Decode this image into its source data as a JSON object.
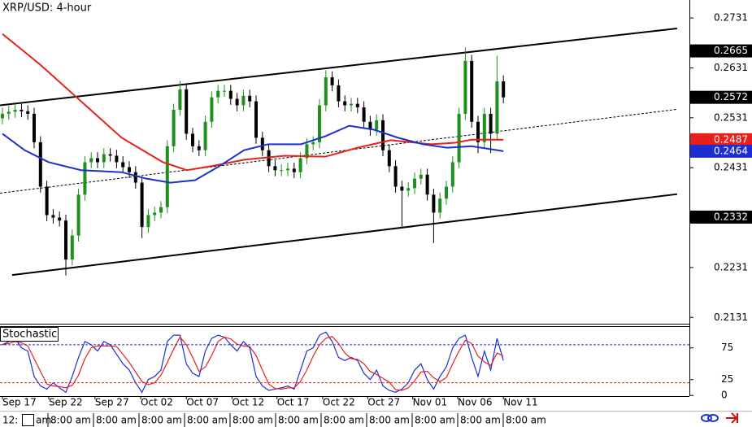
{
  "chart_data": {
    "type": "candlestick",
    "title": "XRP/USD: 4-hour",
    "up_color": "#1f8f1f",
    "down_color": "#000000",
    "ylim": [
      0.212,
      0.2767
    ],
    "yticks": [
      0.2731,
      0.2631,
      0.2531,
      0.2431,
      0.2231,
      0.2131
    ],
    "xlim": [
      -0.4,
      107
    ],
    "xticks": [
      {
        "value": 0,
        "label": "Sep 17"
      },
      {
        "value": 7.3,
        "label": "Sep 22"
      },
      {
        "value": 14.6,
        "label": "Sep 27"
      },
      {
        "value": 21.8,
        "label": "Oct 02"
      },
      {
        "value": 29,
        "label": "Oct 07"
      },
      {
        "value": 36.2,
        "label": "Oct 12"
      },
      {
        "value": 43.3,
        "label": "Oct 17"
      },
      {
        "value": 50.5,
        "label": "Oct 22"
      },
      {
        "value": 57.6,
        "label": "Oct 27"
      },
      {
        "value": 64.7,
        "label": "Nov 01"
      },
      {
        "value": 71.8,
        "label": "Nov 06"
      },
      {
        "value": 79,
        "label": "Nov 11"
      }
    ],
    "open": [
      0.253,
      0.2539,
      0.2543,
      0.2547,
      0.2544,
      0.2539,
      0.2482,
      0.2393,
      0.2336,
      0.2331,
      0.2325,
      0.2247,
      0.2295,
      0.2377,
      0.2442,
      0.245,
      0.2442,
      0.2458,
      0.2455,
      0.2442,
      0.2432,
      0.2422,
      0.2401,
      0.2312,
      0.2336,
      0.2341,
      0.2352,
      0.2474,
      0.2547,
      0.2588,
      0.2499,
      0.2474,
      0.2466,
      0.2523,
      0.2572,
      0.2585,
      0.2585,
      0.2569,
      0.2556,
      0.2575,
      0.2564,
      0.2491,
      0.2466,
      0.2434,
      0.2426,
      0.2426,
      0.2429,
      0.2422,
      0.245,
      0.2478,
      0.2482,
      0.2556,
      0.2612,
      0.2596,
      0.2564,
      0.2556,
      0.2559,
      0.2552,
      0.2523,
      0.2507,
      0.2526,
      0.2466,
      0.2434,
      0.2393,
      0.2385,
      0.239,
      0.2409,
      0.2417,
      0.2377,
      0.2341,
      0.2369,
      0.2393,
      0.2442,
      0.2539,
      0.2645,
      0.2523,
      0.2482,
      0.2539,
      0.2499,
      0.2604
    ],
    "high": [
      0.2551,
      0.2555,
      0.2559,
      0.2559,
      0.2556,
      0.2551,
      0.2494,
      0.2405,
      0.2348,
      0.2343,
      0.2337,
      0.2307,
      0.2389,
      0.2454,
      0.2462,
      0.2462,
      0.247,
      0.247,
      0.2467,
      0.2454,
      0.2444,
      0.2434,
      0.2413,
      0.2348,
      0.2353,
      0.2364,
      0.2486,
      0.2559,
      0.2605,
      0.26,
      0.2511,
      0.2486,
      0.2535,
      0.2584,
      0.2597,
      0.2597,
      0.2597,
      0.2581,
      0.2587,
      0.2587,
      0.2576,
      0.2503,
      0.2478,
      0.2446,
      0.2438,
      0.2441,
      0.2441,
      0.2462,
      0.249,
      0.2494,
      0.2568,
      0.2626,
      0.2624,
      0.2608,
      0.2576,
      0.2571,
      0.2571,
      0.2564,
      0.2535,
      0.2538,
      0.2538,
      0.2478,
      0.2446,
      0.2405,
      0.2402,
      0.2421,
      0.2429,
      0.2429,
      0.2389,
      0.2381,
      0.2405,
      0.2454,
      0.2551,
      0.2672,
      0.2657,
      0.2535,
      0.2551,
      0.2551,
      0.2655,
      0.2616
    ],
    "low": [
      0.2518,
      0.2527,
      0.2531,
      0.2532,
      0.2527,
      0.247,
      0.2381,
      0.2324,
      0.2319,
      0.2313,
      0.2215,
      0.2235,
      0.2283,
      0.2365,
      0.243,
      0.243,
      0.243,
      0.2443,
      0.243,
      0.242,
      0.241,
      0.2389,
      0.229,
      0.23,
      0.2324,
      0.2329,
      0.234,
      0.2462,
      0.2535,
      0.2487,
      0.2462,
      0.2454,
      0.2454,
      0.2511,
      0.256,
      0.2573,
      0.2557,
      0.2544,
      0.2544,
      0.2552,
      0.2479,
      0.2454,
      0.2422,
      0.2414,
      0.2414,
      0.2414,
      0.241,
      0.241,
      0.2438,
      0.2466,
      0.247,
      0.2544,
      0.2584,
      0.2552,
      0.2544,
      0.2544,
      0.254,
      0.2511,
      0.2495,
      0.2495,
      0.2454,
      0.2422,
      0.2381,
      0.231,
      0.2373,
      0.2378,
      0.2397,
      0.2365,
      0.228,
      0.2329,
      0.2357,
      0.2381,
      0.243,
      0.2527,
      0.2511,
      0.246,
      0.247,
      0.246,
      0.2487,
      0.256
    ],
    "close": [
      0.2539,
      0.2543,
      0.2547,
      0.2544,
      0.2539,
      0.2482,
      0.2393,
      0.2336,
      0.2331,
      0.2325,
      0.2247,
      0.2295,
      0.2377,
      0.2442,
      0.245,
      0.2442,
      0.2458,
      0.2455,
      0.2442,
      0.2432,
      0.2422,
      0.2401,
      0.2312,
      0.2336,
      0.2341,
      0.2352,
      0.2474,
      0.2547,
      0.2588,
      0.2499,
      0.2474,
      0.2466,
      0.2523,
      0.2572,
      0.2585,
      0.2585,
      0.2569,
      0.2556,
      0.2575,
      0.2564,
      0.2491,
      0.2466,
      0.2434,
      0.2426,
      0.2426,
      0.2429,
      0.2422,
      0.245,
      0.2478,
      0.2482,
      0.2556,
      0.2612,
      0.2596,
      0.2564,
      0.2556,
      0.2559,
      0.2552,
      0.2523,
      0.2507,
      0.2526,
      0.2466,
      0.2434,
      0.2393,
      0.2385,
      0.239,
      0.2409,
      0.2417,
      0.2377,
      0.2341,
      0.2369,
      0.2393,
      0.2442,
      0.2539,
      0.2645,
      0.2523,
      0.2482,
      0.2539,
      0.2499,
      0.2604,
      0.2572
    ],
    "lines": [
      {
        "color": "#e8201c",
        "x": [
          0,
          6,
          12.4,
          18.8,
          25.3,
          29.1,
          32.9,
          38.1,
          44.5,
          50.9,
          56,
          61.2,
          67.6,
          71.4,
          74,
          79
        ],
        "values": [
          0.2699,
          0.2637,
          0.2564,
          0.2491,
          0.2442,
          0.2426,
          0.2434,
          0.2447,
          0.2455,
          0.2453,
          0.2471,
          0.2486,
          0.2478,
          0.2481,
          0.2487,
          0.2487
        ]
      },
      {
        "color": "#1c2fd0",
        "x": [
          0,
          3.5,
          7.3,
          12.4,
          18.8,
          22.7,
          26.5,
          30.4,
          34.2,
          38.1,
          41.9,
          47.1,
          50.9,
          54.7,
          58.6,
          62.4,
          66.3,
          70.1,
          74,
          79
        ],
        "values": [
          0.2499,
          0.2466,
          0.2442,
          0.2426,
          0.2422,
          0.2409,
          0.2401,
          0.2406,
          0.2434,
          0.2466,
          0.2478,
          0.2478,
          0.2494,
          0.2515,
          0.2507,
          0.2491,
          0.2478,
          0.2471,
          0.2474,
          0.2464
        ]
      }
    ],
    "trendlines": [
      {
        "color": "#000000",
        "dashed": false,
        "x": [
          -0.38,
          106.4
        ],
        "values": [
          0.2556,
          0.271
        ]
      },
      {
        "color": "#000000",
        "dashed": false,
        "x": [
          1.54,
          106.4
        ],
        "values": [
          0.2216,
          0.2378
        ]
      },
      {
        "color": "#000000",
        "dashed": true,
        "x": [
          -0.38,
          106.4
        ],
        "values": [
          0.238,
          0.2548
        ]
      }
    ],
    "price_labels": [
      {
        "value": 0.2665,
        "color": "#000000"
      },
      {
        "value": 0.2572,
        "color": "#000000"
      },
      {
        "value": 0.2487,
        "color": "#e8201c"
      },
      {
        "value": 0.2464,
        "color": "#1c2fd0"
      },
      {
        "value": 0.2332,
        "color": "#000000"
      }
    ],
    "indicator": {
      "title": "Stochastic",
      "ylim": [
        -1,
        108
      ],
      "yticks": [
        75,
        25,
        0
      ],
      "levels": [
        {
          "value": 80,
          "color": "#1c2fd0"
        },
        {
          "value": 20,
          "color": "#e8201c"
        }
      ],
      "series": [
        {
          "color": "#1c2fd0",
          "values": [
            80,
            85,
            90,
            75,
            70,
            30,
            15,
            10,
            20,
            12,
            5,
            30,
            60,
            85,
            80,
            70,
            85,
            80,
            65,
            50,
            40,
            20,
            5,
            25,
            30,
            40,
            85,
            95,
            95,
            50,
            35,
            30,
            70,
            90,
            95,
            92,
            80,
            70,
            85,
            75,
            30,
            15,
            8,
            10,
            12,
            15,
            10,
            40,
            70,
            75,
            95,
            100,
            85,
            60,
            55,
            60,
            55,
            35,
            25,
            40,
            15,
            8,
            5,
            10,
            20,
            40,
            50,
            25,
            10,
            30,
            45,
            75,
            90,
            95,
            60,
            30,
            70,
            40,
            90,
            55
          ]
        },
        {
          "color": "#e8201c",
          "values": [
            80,
            82,
            85,
            83,
            78,
            58,
            38,
            18,
            15,
            14,
            12,
            16,
            32,
            58,
            75,
            78,
            78,
            78,
            77,
            65,
            52,
            37,
            22,
            17,
            20,
            32,
            52,
            73,
            92,
            80,
            60,
            38,
            45,
            63,
            85,
            92,
            89,
            81,
            78,
            77,
            63,
            40,
            18,
            11,
            10,
            12,
            12,
            22,
            40,
            62,
            80,
            90,
            93,
            82,
            67,
            58,
            57,
            50,
            38,
            33,
            27,
            21,
            9,
            8,
            12,
            23,
            37,
            38,
            28,
            22,
            28,
            50,
            70,
            87,
            82,
            62,
            53,
            47,
            67,
            62
          ]
        }
      ]
    },
    "time_strip": [
      "12:",
      "am",
      "8:00 am",
      "8:00 am",
      "8:00 am",
      "8:00 am",
      "8:00 am",
      "8:00 am",
      "8:00 am",
      "8:00 am",
      "8:00 am",
      "8:00 am",
      "8:00 am"
    ]
  }
}
